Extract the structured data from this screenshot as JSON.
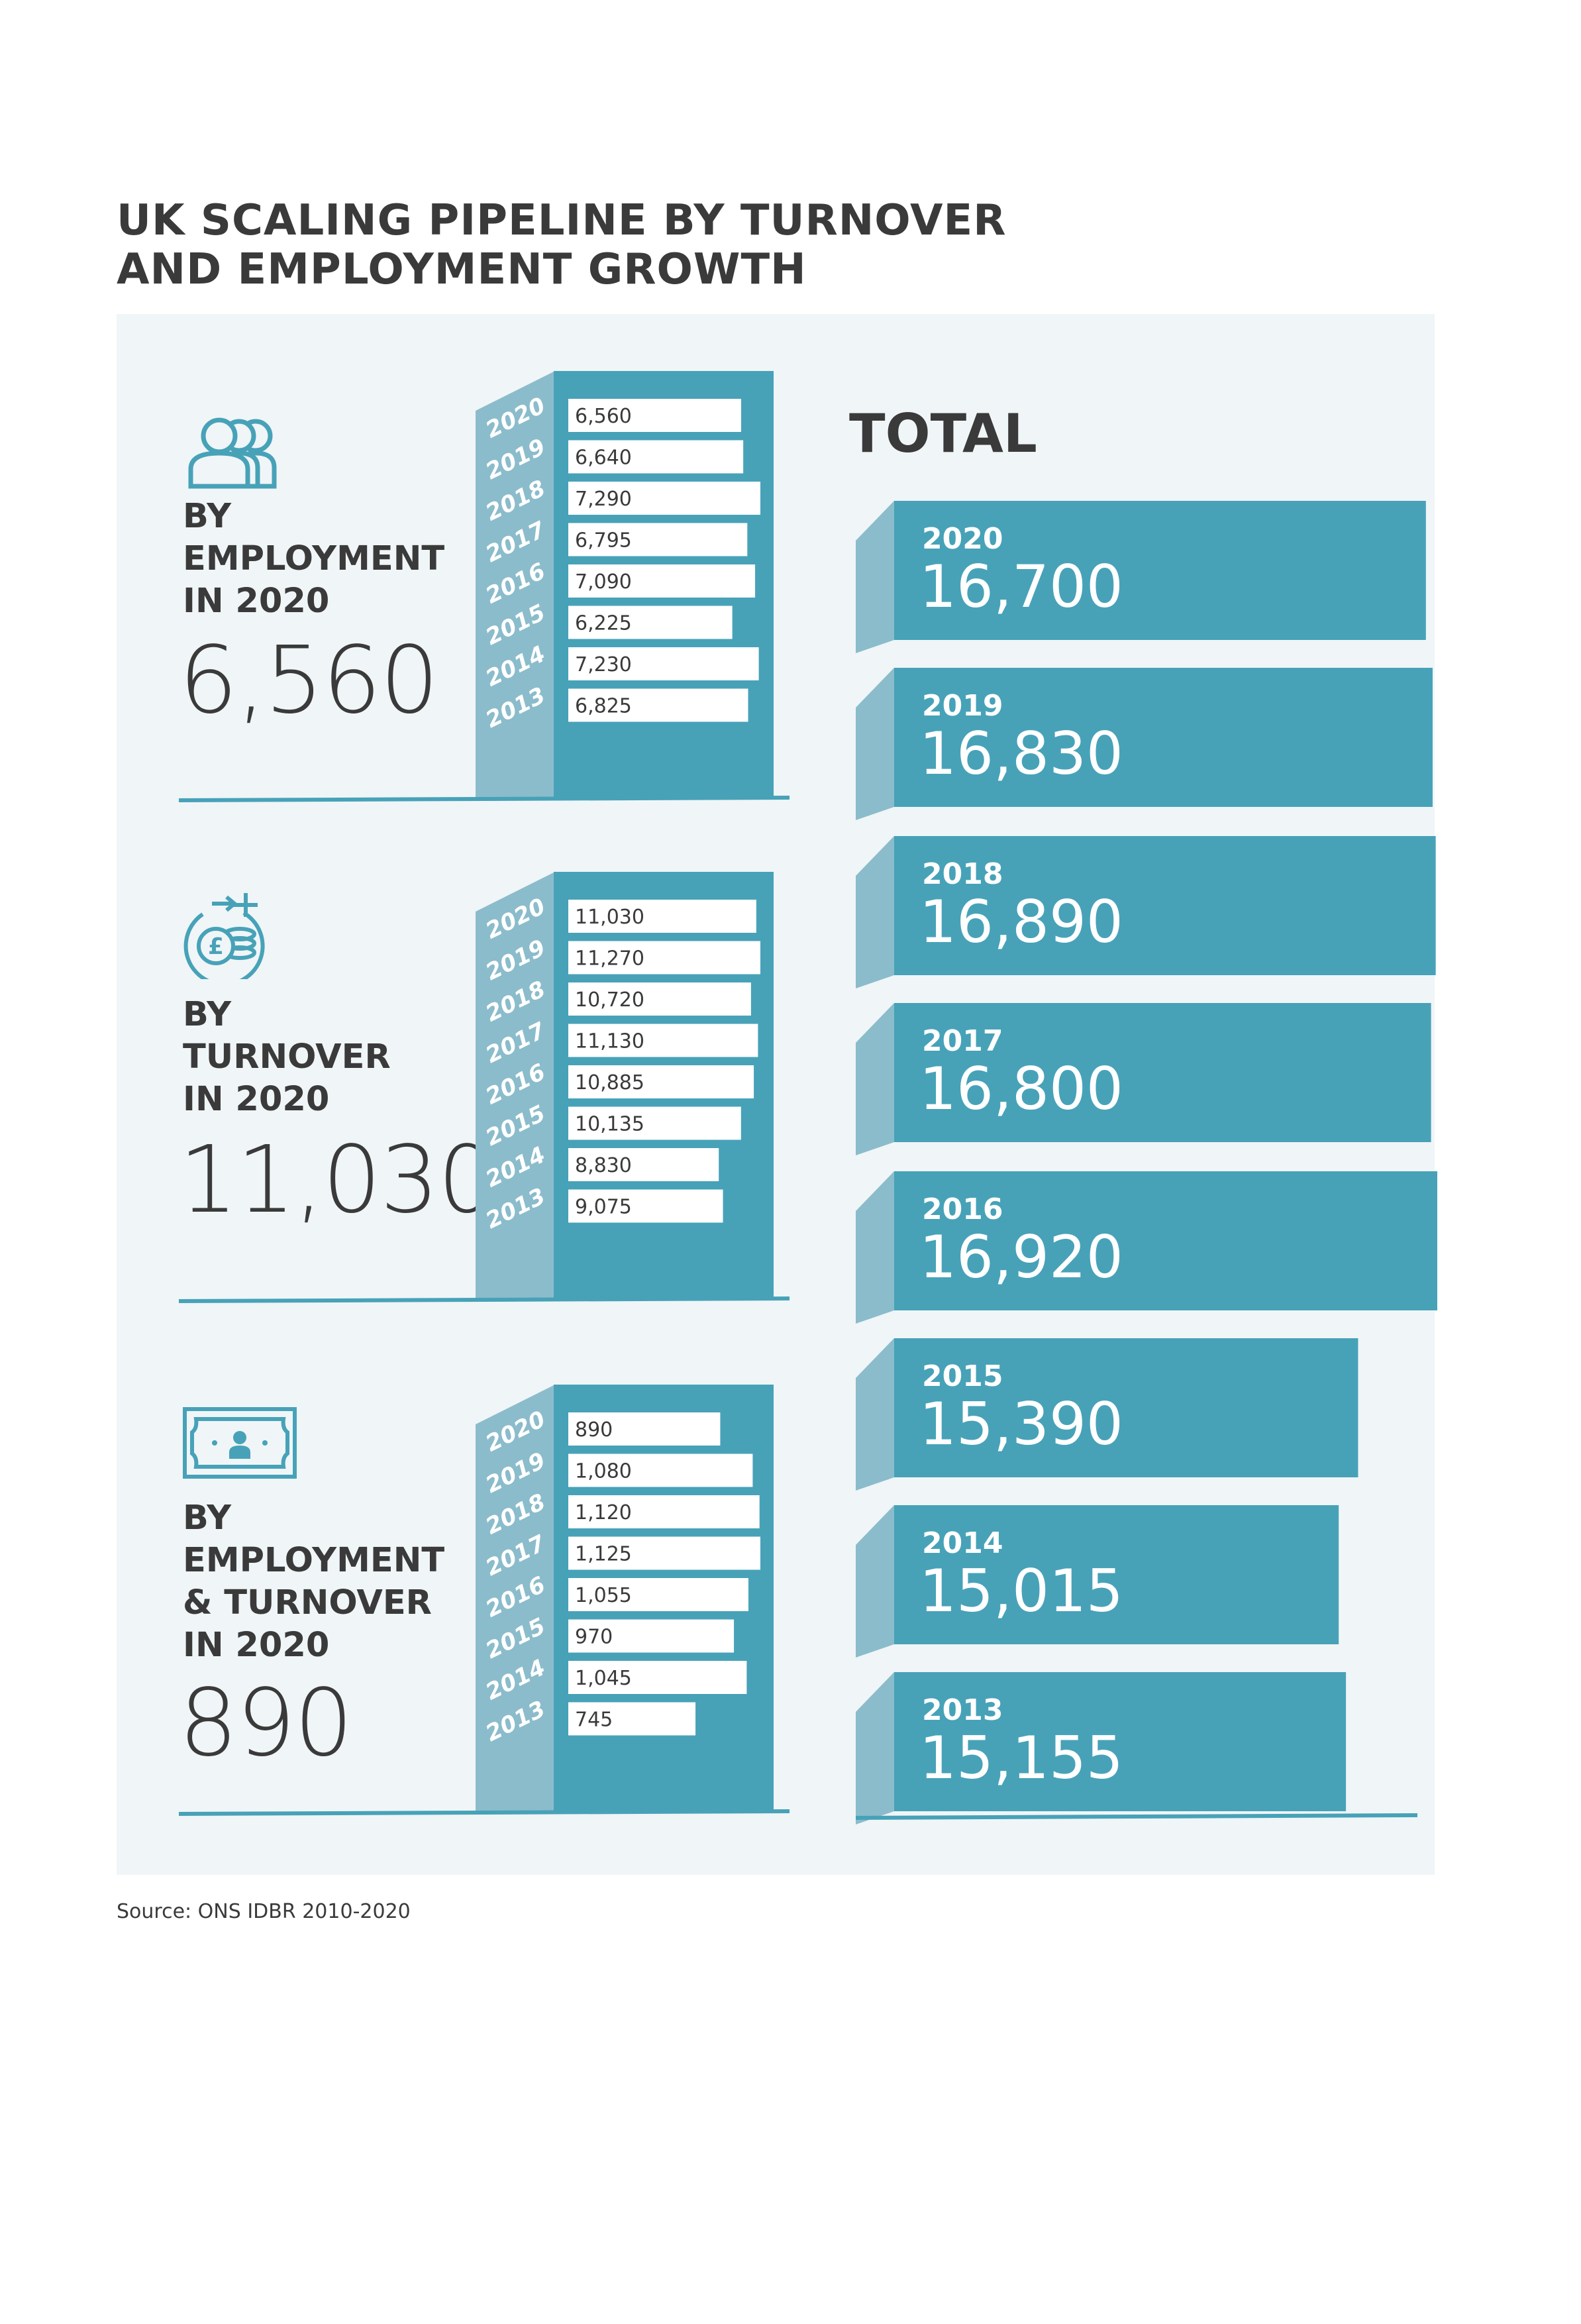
{
  "title_lines": [
    "UK SCALING PIPELINE BY TURNOVER",
    "AND EMPLOYMENT GROWTH"
  ],
  "source": "Source: ONS IDBR 2010-2020",
  "total_heading": "TOTAL",
  "colors": {
    "teal": "#47a2b8",
    "teal_side": "#8bbccb",
    "panel_bg": "#f0f5f7",
    "text": "#3a3a3a"
  },
  "sections": [
    {
      "icon": "people-icon",
      "label_lines": [
        "BY",
        "EMPLOYMENT",
        "IN 2020"
      ],
      "headline": "6,560"
    },
    {
      "icon": "pound-coins-growth-icon",
      "label_lines": [
        "BY",
        "TURNOVER",
        "IN 2020"
      ],
      "headline": "11,030"
    },
    {
      "icon": "banknote-person-icon",
      "label_lines": [
        "BY",
        "EMPLOYMENT",
        "& TURNOVER",
        "IN 2020"
      ],
      "headline": "890"
    }
  ],
  "chart_data": [
    {
      "type": "bar",
      "orientation": "horizontal",
      "section": "BY EMPLOYMENT IN 2020",
      "categories": [
        "2020",
        "2019",
        "2018",
        "2017",
        "2016",
        "2015",
        "2014",
        "2013"
      ],
      "values": [
        6560,
        6640,
        7290,
        6795,
        7090,
        6225,
        7230,
        6825
      ],
      "labels": [
        "6,560",
        "6,640",
        "7,290",
        "6,795",
        "7,090",
        "6,225",
        "7,230",
        "6,825"
      ]
    },
    {
      "type": "bar",
      "orientation": "horizontal",
      "section": "BY TURNOVER IN 2020",
      "categories": [
        "2020",
        "2019",
        "2018",
        "2017",
        "2016",
        "2015",
        "2014",
        "2013"
      ],
      "values": [
        11030,
        11270,
        10720,
        11130,
        10885,
        10135,
        8830,
        9075
      ],
      "labels": [
        "11,030",
        "11,270",
        "10,720",
        "11,130",
        "10,885",
        "10,135",
        "8,830",
        "9,075"
      ]
    },
    {
      "type": "bar",
      "orientation": "horizontal",
      "section": "BY EMPLOYMENT & TURNOVER IN 2020",
      "categories": [
        "2020",
        "2019",
        "2018",
        "2017",
        "2016",
        "2015",
        "2014",
        "2013"
      ],
      "values": [
        890,
        1080,
        1120,
        1125,
        1055,
        970,
        1045,
        745
      ],
      "labels": [
        "890",
        "1,080",
        "1,120",
        "1,125",
        "1,055",
        "970",
        "1,045",
        "745"
      ]
    },
    {
      "type": "bar",
      "orientation": "horizontal",
      "section": "TOTAL",
      "categories": [
        "2020",
        "2019",
        "2018",
        "2017",
        "2016",
        "2015",
        "2014",
        "2013"
      ],
      "values": [
        16700,
        16830,
        16890,
        16800,
        16920,
        15390,
        15015,
        15155
      ],
      "labels": [
        "16,700",
        "16,830",
        "16,890",
        "16,800",
        "16,920",
        "15,390",
        "15,015",
        "15,155"
      ]
    }
  ]
}
